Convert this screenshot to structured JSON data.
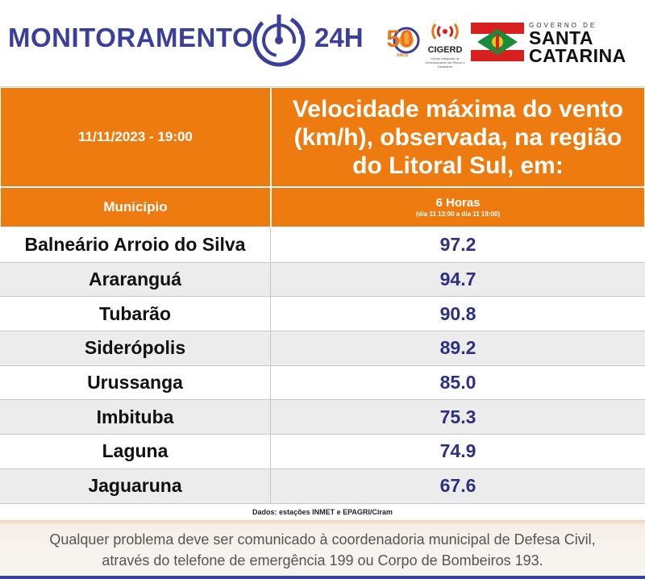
{
  "header": {
    "brand_title": "MONITORAMENTO",
    "brand_suffix": "24H",
    "logo_50": "50",
    "logo_50_sub": "ANOS",
    "cigerd_label": "CIGERD",
    "cigerd_sub": "Centro Integrado de Gerenciamento de Riscos e Desastres",
    "gov_label": "GOVERNO DE",
    "gov_name_line1": "SANTA",
    "gov_name_line2": "CATARINA",
    "colors": {
      "brand_blue": "#3a3f99",
      "orange": "#ee7b10",
      "sc_red": "#d8201f",
      "sc_green": "#1a8a3c"
    }
  },
  "table": {
    "date": "11/11/2023 - 19:00",
    "title": "Velocidade máxima do vento (km/h), observada, na região do Litoral Sul, em:",
    "col_municipio": "Município",
    "col_period": "6 Horas",
    "col_period_sub": "(dia 11 13:00 a dia 11 19:00)",
    "rows": [
      {
        "municipio": "Balneário Arroio do Silva",
        "valor": "97.2"
      },
      {
        "municipio": "Araranguá",
        "valor": "94.7"
      },
      {
        "municipio": "Tubarão",
        "valor": "90.8"
      },
      {
        "municipio": "Siderópolis",
        "valor": "89.2"
      },
      {
        "municipio": "Urussanga",
        "valor": "85.0"
      },
      {
        "municipio": "Imbituba",
        "valor": "75.3"
      },
      {
        "municipio": "Laguna",
        "valor": "74.9"
      },
      {
        "municipio": "Jaguaruna",
        "valor": "67.6"
      }
    ],
    "source": "Dados: estações INMET e EPAGRI/Ciram"
  },
  "footer": {
    "line1": "Qualquer problema deve ser comunicado à coordenadoria municipal de Defesa Civil,",
    "line2": "através do telefone de emergência 199 ou Corpo de Bombeiros 193."
  }
}
